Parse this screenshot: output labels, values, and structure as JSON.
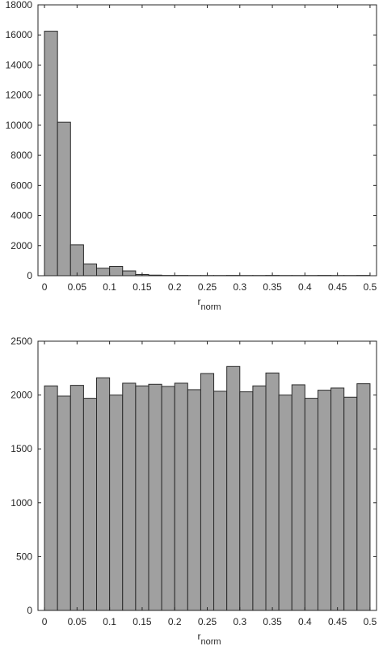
{
  "colors": {
    "bar_fill": "#a0a0a0",
    "bar_edge": "#2a2a2a",
    "axis": "#262626"
  },
  "chart_data": [
    {
      "type": "bar",
      "subtype": "histogram",
      "bin_width": 0.02,
      "x_start": 0,
      "xlabel_main": "r",
      "xlabel_sub": "norm",
      "xlim": [
        -0.01,
        0.51
      ],
      "ylim": [
        0,
        18000
      ],
      "xticks": [
        0,
        0.05,
        0.1,
        0.15,
        0.2,
        0.25,
        0.3,
        0.35,
        0.4,
        0.45,
        0.5
      ],
      "xtick_labels": [
        "0",
        "0.05",
        "0.1",
        "0.15",
        "0.2",
        "0.25",
        "0.3",
        "0.35",
        "0.4",
        "0.45",
        "0.5"
      ],
      "yticks": [
        0,
        2000,
        4000,
        6000,
        8000,
        10000,
        12000,
        14000,
        16000,
        18000
      ],
      "ytick_labels": [
        "0",
        "2000",
        "4000",
        "6000",
        "8000",
        "10000",
        "12000",
        "14000",
        "16000",
        "18000"
      ],
      "grid": false,
      "values": [
        16250,
        10200,
        2050,
        780,
        500,
        620,
        320,
        80,
        40,
        20,
        20,
        15,
        15,
        15,
        20,
        15,
        15,
        20,
        15,
        15,
        15,
        20,
        15,
        15,
        20
      ]
    },
    {
      "type": "bar",
      "subtype": "histogram",
      "bin_width": 0.02,
      "x_start": 0,
      "xlabel_main": "r",
      "xlabel_sub": "norm",
      "xlim": [
        -0.01,
        0.51
      ],
      "ylim": [
        0,
        2500
      ],
      "xticks": [
        0,
        0.05,
        0.1,
        0.15,
        0.2,
        0.25,
        0.3,
        0.35,
        0.4,
        0.45,
        0.5
      ],
      "xtick_labels": [
        "0",
        "0.05",
        "0.1",
        "0.15",
        "0.2",
        "0.25",
        "0.3",
        "0.35",
        "0.4",
        "0.45",
        "0.5"
      ],
      "yticks": [
        0,
        500,
        1000,
        1500,
        2000,
        2500
      ],
      "ytick_labels": [
        "0",
        "500",
        "1000",
        "1500",
        "2000",
        "2500"
      ],
      "grid": false,
      "values": [
        2085,
        1990,
        2090,
        1970,
        2160,
        2000,
        2110,
        2085,
        2100,
        2080,
        2110,
        2050,
        2200,
        2035,
        2265,
        2030,
        2085,
        2205,
        2000,
        2095,
        1970,
        2045,
        2065,
        1980,
        2105
      ]
    }
  ]
}
